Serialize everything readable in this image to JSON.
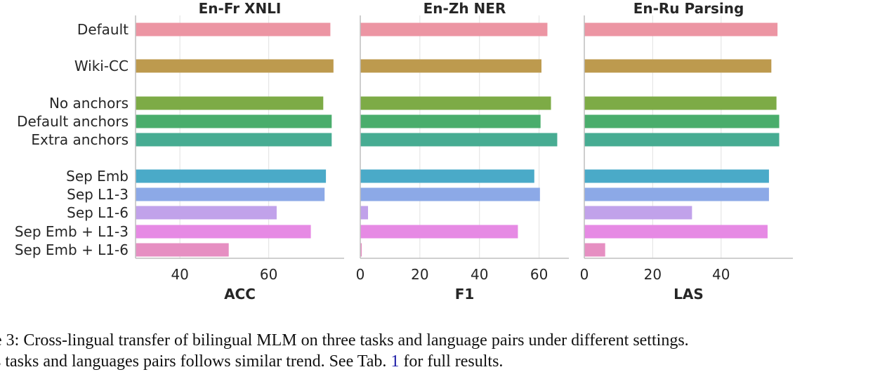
{
  "chart_data": [
    {
      "type": "bar",
      "orientation": "horizontal",
      "title": "En-Fr XNLI",
      "xlabel": "ACC",
      "xlim": [
        30,
        77
      ],
      "xticks": [
        40,
        60
      ],
      "grid": "vertical",
      "categories": [
        "Default",
        "Wiki-CC",
        "No anchors",
        "Default anchors",
        "Extra anchors",
        "Sep Emb",
        "Sep L1-3",
        "Sep L1-6",
        "Sep Emb + L1-3",
        "Sep Emb + L1-6"
      ],
      "values": [
        73.9,
        74.6,
        72.3,
        74.2,
        74.2,
        72.9,
        72.6,
        61.8,
        69.5,
        51.0
      ]
    },
    {
      "type": "bar",
      "orientation": "horizontal",
      "title": "En-Zh NER",
      "xlabel": "F1",
      "xlim": [
        0,
        70
      ],
      "xticks": [
        0,
        20,
        40,
        60
      ],
      "grid": "vertical",
      "categories": [
        "Default",
        "Wiki-CC",
        "No anchors",
        "Default anchors",
        "Extra anchors",
        "Sep Emb",
        "Sep L1-3",
        "Sep L1-6",
        "Sep Emb + L1-3",
        "Sep Emb + L1-6"
      ],
      "values": [
        62.8,
        60.8,
        64.0,
        60.5,
        66.1,
        58.4,
        60.3,
        2.6,
        52.9,
        0.5
      ]
    },
    {
      "type": "bar",
      "orientation": "horizontal",
      "title": "En-Ru Parsing",
      "xlabel": "LAS",
      "xlim": [
        0,
        61
      ],
      "xticks": [
        0,
        20,
        40
      ],
      "grid": "vertical",
      "categories": [
        "Default",
        "Wiki-CC",
        "No anchors",
        "Default anchors",
        "Extra anchors",
        "Sep Emb",
        "Sep L1-3",
        "Sep L1-6",
        "Sep Emb + L1-3",
        "Sep Emb + L1-6"
      ],
      "values": [
        56.5,
        54.7,
        56.2,
        57.0,
        57.0,
        54.0,
        54.0,
        31.5,
        53.6,
        6.1
      ]
    }
  ],
  "colors": [
    "#ec95a3",
    "#bd9a4e",
    "#7dab46",
    "#4aad6c",
    "#47ac92",
    "#4aaac8",
    "#8ca9e7",
    "#c1a2ea",
    "#e68ae4",
    "#e68fc2"
  ],
  "caption": {
    "line1": "e 3:  Cross-lingual transfer of bilingual MLM on three tasks and language pairs under different settings.",
    "line2_before": "s tasks and languages pairs follows similar trend. See Tab.",
    "line2_ref": "1",
    "line2_after": " for full results."
  }
}
